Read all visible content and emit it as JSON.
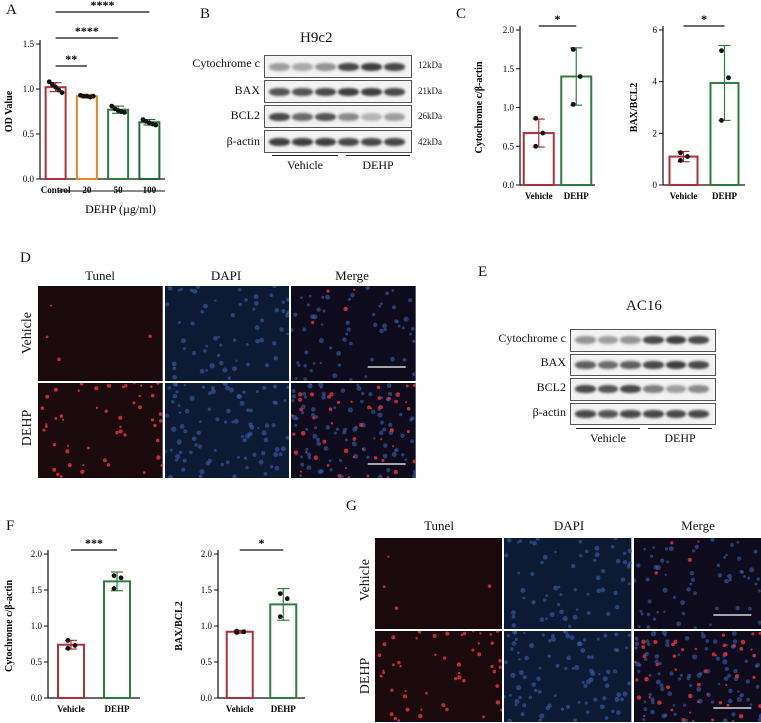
{
  "panels": {
    "A": {
      "letter": "A"
    },
    "B": {
      "letter": "B",
      "title": "H9c2",
      "proteins": [
        "Cytochrome c",
        "BAX",
        "BCL2",
        "β-actin"
      ],
      "kda": [
        "12kDa",
        "21kDa",
        "26kDa",
        "42kDa"
      ],
      "groups": [
        "Vehicle",
        "DEHP"
      ]
    },
    "C": {
      "letter": "C"
    },
    "D": {
      "letter": "D",
      "columns": [
        "Tunel",
        "DAPI",
        "Merge"
      ],
      "rows": [
        "Vehicle",
        "DEHP"
      ]
    },
    "E": {
      "letter": "E",
      "title": "AC16",
      "proteins": [
        "Cytochrome c",
        "BAX",
        "BCL2",
        "β-actin"
      ],
      "groups": [
        "Vehicle",
        "DEHP"
      ]
    },
    "F": {
      "letter": "F"
    },
    "G": {
      "letter": "G",
      "columns": [
        "Tunel",
        "DAPI",
        "Merge"
      ],
      "rows": [
        "Vehicle",
        "DEHP"
      ]
    }
  },
  "colors": {
    "red": "#b0303a",
    "orange": "#e08a1e",
    "green": "#2e7d3f",
    "darkgreen": "#1f6b33",
    "black": "#111111"
  },
  "chart_data": [
    {
      "id": "A",
      "type": "bar",
      "categories": [
        "Control",
        "20",
        "50",
        "100"
      ],
      "values": [
        1.02,
        0.92,
        0.77,
        0.63
      ],
      "errors": [
        0.05,
        0.02,
        0.04,
        0.03
      ],
      "points": [
        [
          1.08,
          1.05,
          1.02,
          0.99,
          0.96
        ],
        [
          0.93,
          0.92,
          0.92,
          0.91,
          0.92
        ],
        [
          0.81,
          0.78,
          0.76,
          0.75,
          0.74
        ],
        [
          0.66,
          0.64,
          0.62,
          0.61,
          0.6
        ]
      ],
      "bar_colors": [
        "#b0303a",
        "#e08a1e",
        "#2e7d3f",
        "#1f6b33"
      ],
      "ylabel": "OD Value",
      "xlabel": "DEHP (µg/ml)",
      "ylim": [
        0,
        1.5
      ],
      "yticks": [
        0.0,
        0.5,
        1.0,
        1.5
      ],
      "significance": [
        {
          "pair": [
            0,
            1
          ],
          "label": "**"
        },
        {
          "pair": [
            0,
            2
          ],
          "label": "****"
        },
        {
          "pair": [
            0,
            3
          ],
          "label": "****"
        }
      ]
    },
    {
      "id": "C1",
      "type": "bar",
      "categories": [
        "Vehicle",
        "DEHP"
      ],
      "values": [
        0.67,
        1.4
      ],
      "errors": [
        0.18,
        0.37
      ],
      "points": [
        [
          0.86,
          0.67,
          0.5
        ],
        [
          1.75,
          1.4,
          1.04
        ]
      ],
      "bar_colors": [
        "#b0303a",
        "#2e7d3f"
      ],
      "ylabel": "Cytochrome c/β-actin",
      "ylim": [
        0,
        2.0
      ],
      "yticks": [
        0.0,
        0.5,
        1.0,
        1.5,
        2.0
      ],
      "significance": [
        {
          "pair": [
            0,
            1
          ],
          "label": "*"
        }
      ]
    },
    {
      "id": "C2",
      "type": "bar",
      "categories": [
        "Vehicle",
        "DEHP"
      ],
      "values": [
        1.1,
        3.95
      ],
      "errors": [
        0.2,
        1.45
      ],
      "points": [
        [
          1.25,
          1.1,
          0.95
        ],
        [
          5.2,
          4.15,
          2.5
        ]
      ],
      "bar_colors": [
        "#b0303a",
        "#2e7d3f"
      ],
      "ylabel": "BAX/BCL2",
      "ylim": [
        0,
        6
      ],
      "yticks": [
        0,
        2,
        4,
        6
      ],
      "significance": [
        {
          "pair": [
            0,
            1
          ],
          "label": "*"
        }
      ]
    },
    {
      "id": "F1",
      "type": "bar",
      "categories": [
        "Vehicle",
        "DEHP"
      ],
      "values": [
        0.74,
        1.62
      ],
      "errors": [
        0.06,
        0.13
      ],
      "points": [
        [
          0.8,
          0.73,
          0.69
        ],
        [
          1.7,
          1.67,
          1.52
        ]
      ],
      "bar_colors": [
        "#b0303a",
        "#2e7d3f"
      ],
      "ylabel": "Cytochrome c/β-actin",
      "ylim": [
        0,
        2.0
      ],
      "yticks": [
        0.0,
        0.5,
        1.0,
        1.5,
        2.0
      ],
      "significance": [
        {
          "pair": [
            0,
            1
          ],
          "label": "***"
        }
      ]
    },
    {
      "id": "F2",
      "type": "bar",
      "categories": [
        "Vehicle",
        "DEHP"
      ],
      "values": [
        0.92,
        1.3
      ],
      "errors": [
        0.02,
        0.22
      ],
      "points": [
        [
          0.91,
          0.92,
          0.93
        ],
        [
          1.45,
          1.38,
          1.13
        ]
      ],
      "bar_colors": [
        "#b0303a",
        "#2e7d3f"
      ],
      "ylabel": "BAX/BCL2",
      "ylim": [
        0,
        2.0
      ],
      "yticks": [
        0.0,
        0.5,
        1.0,
        1.5,
        2.0
      ],
      "significance": [
        {
          "pair": [
            0,
            1
          ],
          "label": "*"
        }
      ]
    }
  ]
}
